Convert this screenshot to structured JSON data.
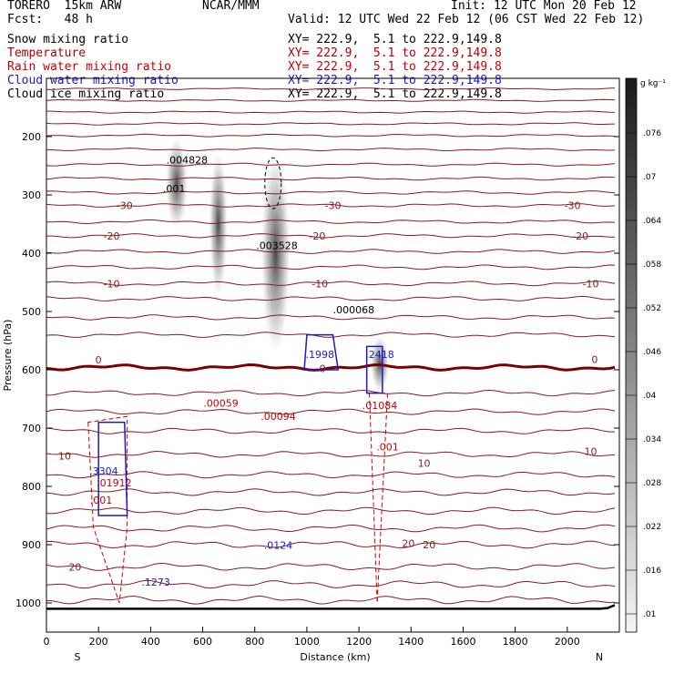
{
  "header": {
    "model": "TORERO  15km ARW",
    "org": "NCAR/MMM",
    "init": "Init: 12 UTC Mon 20 Feb 12",
    "fcst": "Fcst:   48 h",
    "valid": "Valid: 12 UTC Wed 22 Feb 12 (06 CST Wed 22 Feb 12)"
  },
  "fields": [
    {
      "name": "Snow mixing ratio",
      "color": "#000000",
      "xy": "XY= 222.9,  5.1 to 222.9,149.8"
    },
    {
      "name": "Temperature",
      "color": "#b40000",
      "xy": "XY= 222.9,  5.1 to 222.9,149.8"
    },
    {
      "name": "Rain water mixing ratio",
      "color": "#cc0000",
      "xy": "XY= 222.9,  5.1 to 222.9,149.8"
    },
    {
      "name": "Cloud water mixing ratio",
      "color": "#1a1acc",
      "xy": "XY= 222.9,  5.1 to 222.9,149.8"
    },
    {
      "name": "Cloud ice mixing ratio",
      "color": "#000000",
      "xy": "XY= 222.9,  5.1 to 222.9,149.8"
    }
  ],
  "chart_data": {
    "type": "contour-cross-section",
    "xlabel": "Distance (km)",
    "ylabel": "Pressure (hPa)",
    "xlim": [
      0,
      2200
    ],
    "ylim": [
      1050,
      100
    ],
    "x_ticks": [
      0,
      200,
      400,
      600,
      800,
      1000,
      1200,
      1400,
      1600,
      1800,
      2000
    ],
    "y_ticks": [
      200,
      300,
      400,
      500,
      600,
      700,
      800,
      900,
      1000
    ],
    "x_end_labels": {
      "left": "S",
      "right": "N"
    },
    "temperature_labels": [
      {
        "text": "-30",
        "x": 300,
        "p": 318
      },
      {
        "text": "-30",
        "x": 1100,
        "p": 318
      },
      {
        "text": "-30",
        "x": 2020,
        "p": 318
      },
      {
        "text": "-20",
        "x": 250,
        "p": 370
      },
      {
        "text": "-20",
        "x": 1040,
        "p": 370
      },
      {
        "text": "-20",
        "x": 2050,
        "p": 370
      },
      {
        "text": "-10",
        "x": 250,
        "p": 452
      },
      {
        "text": "-10",
        "x": 1050,
        "p": 452
      },
      {
        "text": "-10",
        "x": 2090,
        "p": 452
      },
      {
        "text": "0",
        "x": 200,
        "p": 583
      },
      {
        "text": "0",
        "x": 1060,
        "p": 598
      },
      {
        "text": "0",
        "x": 2105,
        "p": 582
      },
      {
        "text": "10",
        "x": 70,
        "p": 748
      },
      {
        "text": "10",
        "x": 1450,
        "p": 760
      },
      {
        "text": "10",
        "x": 2090,
        "p": 740
      },
      {
        "text": "20",
        "x": 110,
        "p": 938
      },
      {
        "text": "20",
        "x": 1390,
        "p": 898
      },
      {
        "text": "20",
        "x": 1470,
        "p": 900
      }
    ],
    "maxima": [
      {
        "text": ".004828",
        "x": 540,
        "p": 246,
        "color": "#000000"
      },
      {
        "text": ".001",
        "x": 490,
        "p": 295,
        "color": "#000000"
      },
      {
        "text": ".003528",
        "x": 885,
        "p": 393,
        "color": "#000000"
      },
      {
        "text": ".000068",
        "x": 1180,
        "p": 503,
        "color": "#000000"
      },
      {
        "text": ".1998",
        "x": 1050,
        "p": 580,
        "color": "#1a1acc"
      },
      {
        "text": ".2418",
        "x": 1280,
        "p": 580,
        "color": "#1a1acc"
      },
      {
        "text": ".01084",
        "x": 1280,
        "p": 667,
        "color": "#cc0000"
      },
      {
        "text": ".00059",
        "x": 670,
        "p": 663,
        "color": "#cc0000"
      },
      {
        "text": ".00094",
        "x": 890,
        "p": 686,
        "color": "#cc0000"
      },
      {
        "text": ".001",
        "x": 1310,
        "p": 738,
        "color": "#cc0000"
      },
      {
        "text": ".3304",
        "x": 220,
        "p": 780,
        "color": "#1a1acc"
      },
      {
        "text": ".01912",
        "x": 260,
        "p": 800,
        "color": "#cc0000"
      },
      {
        "text": ".001",
        "x": 210,
        "p": 830,
        "color": "#cc0000"
      },
      {
        "text": ".0124",
        "x": 890,
        "p": 907,
        "color": "#1a1acc"
      },
      {
        "text": ".1273",
        "x": 420,
        "p": 970,
        "color": "#1a1acc"
      }
    ],
    "colorbar": {
      "unit": "g kg⁻¹",
      "labels": [
        ".076",
        ".07",
        ".064",
        ".058",
        ".052",
        ".046",
        ".04",
        ".034",
        ".028",
        ".022",
        ".016",
        ".01"
      ]
    }
  }
}
